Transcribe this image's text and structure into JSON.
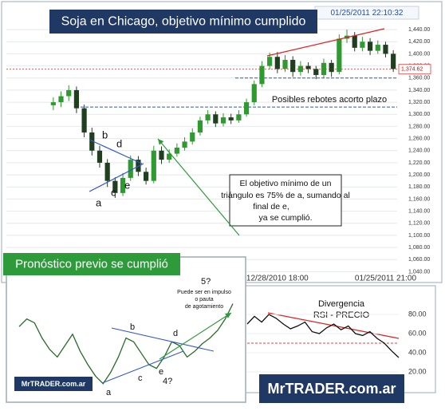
{
  "brand": "MrTRADER.com.ar",
  "chart_data": [
    {
      "type": "candlestick",
      "title": "Soja en Chicago, objetivo mínimo cumplido",
      "timestamp": "01/25/2011 22:10:32",
      "categories": [
        null,
        null,
        null,
        null,
        null,
        null,
        null,
        null,
        null,
        null,
        null,
        null,
        null,
        null,
        null,
        null,
        null,
        null,
        null,
        null,
        null,
        null,
        null,
        null,
        null,
        null,
        null,
        null,
        null,
        "12/28/2010 18:00",
        null,
        null,
        null,
        null,
        null,
        null,
        null,
        null,
        null,
        null,
        null,
        null,
        null,
        "01/25/2011 21:00",
        null
      ],
      "open": [
        1315,
        1320,
        1330,
        1340,
        1310,
        1270,
        1240,
        1220,
        1190,
        1170,
        1195,
        1225,
        1205,
        1190,
        1240,
        1225,
        1235,
        1245,
        1255,
        1270,
        1290,
        1300,
        1285,
        1295,
        1290,
        1300,
        1320,
        1350,
        1380,
        1395,
        1375,
        1390,
        1370,
        1380,
        1375,
        1365,
        1385,
        1370,
        1425,
        1430,
        1410,
        1420,
        1405,
        1415,
        1400
      ],
      "high": [
        1328,
        1338,
        1348,
        1346,
        1316,
        1278,
        1248,
        1226,
        1196,
        1203,
        1232,
        1231,
        1212,
        1248,
        1247,
        1242,
        1252,
        1262,
        1277,
        1296,
        1307,
        1305,
        1302,
        1301,
        1307,
        1326,
        1356,
        1388,
        1402,
        1403,
        1398,
        1396,
        1388,
        1386,
        1380,
        1392,
        1390,
        1432,
        1440,
        1436,
        1428,
        1426,
        1422,
        1420,
        1406
      ],
      "low": [
        1307,
        1312,
        1322,
        1302,
        1262,
        1232,
        1212,
        1180,
        1162,
        1165,
        1190,
        1198,
        1184,
        1186,
        1218,
        1220,
        1230,
        1240,
        1250,
        1265,
        1284,
        1279,
        1280,
        1284,
        1286,
        1296,
        1315,
        1345,
        1374,
        1368,
        1370,
        1362,
        1364,
        1368,
        1358,
        1360,
        1362,
        1366,
        1418,
        1404,
        1404,
        1398,
        1400,
        1394,
        1370
      ],
      "close": [
        1320,
        1330,
        1340,
        1310,
        1270,
        1240,
        1220,
        1190,
        1170,
        1195,
        1225,
        1205,
        1190,
        1240,
        1225,
        1235,
        1245,
        1255,
        1270,
        1290,
        1300,
        1285,
        1295,
        1290,
        1300,
        1320,
        1350,
        1380,
        1395,
        1375,
        1390,
        1370,
        1380,
        1375,
        1365,
        1385,
        1370,
        1425,
        1430,
        1410,
        1420,
        1405,
        1415,
        1400,
        1375
      ],
      "up_color": "#2f9a2f",
      "down_color": "#1f3f1f",
      "last_price": {
        "value": 1374.62,
        "label": "1,374.62"
      },
      "support_levels": [
        1360,
        1312
      ],
      "ylim": [
        1030,
        1452
      ],
      "yticks": [
        {
          "value": 1040,
          "label": "1,040.00"
        },
        {
          "value": 1060,
          "label": "1,060.00"
        },
        {
          "value": 1080,
          "label": "1,080.00"
        },
        {
          "value": 1100,
          "label": "1,100.00"
        },
        {
          "value": 1120,
          "label": "1,120.00"
        },
        {
          "value": 1140,
          "label": "1,140.00"
        },
        {
          "value": 1160,
          "label": "1,160.00"
        },
        {
          "value": 1180,
          "label": "1,180.00"
        },
        {
          "value": 1200,
          "label": "1,200.00"
        },
        {
          "value": 1220,
          "label": "1,220.00"
        },
        {
          "value": 1240,
          "label": "1,240.00"
        },
        {
          "value": 1260,
          "label": "1,260.00"
        },
        {
          "value": 1280,
          "label": "1,280.00"
        },
        {
          "value": 1300,
          "label": "1,300.00"
        },
        {
          "value": 1320,
          "label": "1,320.00"
        },
        {
          "value": 1340,
          "label": "1,340.00"
        },
        {
          "value": 1360,
          "label": "1,360.00"
        },
        {
          "value": 1380,
          "label": "1,380.00"
        },
        {
          "value": 1400,
          "label": "1,400.00"
        },
        {
          "value": 1420,
          "label": "1,420.00"
        },
        {
          "value": 1440,
          "label": "1,440.00"
        }
      ],
      "grid": true,
      "annotations": {
        "a": "a",
        "b": "b",
        "c": "c",
        "d": "d",
        "e": "e",
        "rebotes": "Posibles rebotes acorto plazo",
        "objetivo": [
          "El objetivo mínimo de un",
          "triángulo es 75% de a, sumando al",
          "final de e,",
          "ya se cumplió."
        ]
      }
    },
    {
      "type": "line",
      "title": [
        "Divergencia",
        "RSI - PRECIO"
      ],
      "values": [
        70,
        78,
        72,
        80,
        76,
        70,
        65,
        68,
        72,
        62,
        60,
        66,
        70,
        64,
        68,
        60,
        58,
        62,
        55,
        50,
        42,
        35
      ],
      "color": "#111111",
      "level": 50,
      "ylim": [
        10,
        100
      ],
      "yticks": [
        {
          "value": 80,
          "label": "80.00"
        },
        {
          "value": 60,
          "label": "60.00"
        },
        {
          "value": 40,
          "label": "40.00"
        },
        {
          "value": 20,
          "label": "20.00"
        }
      ]
    },
    {
      "type": "line",
      "title": "Pronóstico previo se cumplió",
      "values": [
        1280,
        1300,
        1290,
        1250,
        1220,
        1200,
        1230,
        1260,
        1215,
        1180,
        1150,
        1130,
        1160,
        1200,
        1250,
        1240,
        1210,
        1180,
        1170,
        1200,
        1240,
        1230,
        1200,
        1215,
        1235,
        1250,
        1270,
        1300,
        1340
      ],
      "color": "#2a6a2a",
      "ylim": [
        1100,
        1400
      ],
      "watermark": "MrTRADER.com.ar",
      "annotations": {
        "a": "a",
        "b": "b",
        "c": "c",
        "d": "d",
        "e": "e",
        "w4": "4?",
        "w5": "5?",
        "note": [
          "Puede ser en impulso",
          "o pauta",
          "de agotamiento"
        ]
      }
    }
  ]
}
